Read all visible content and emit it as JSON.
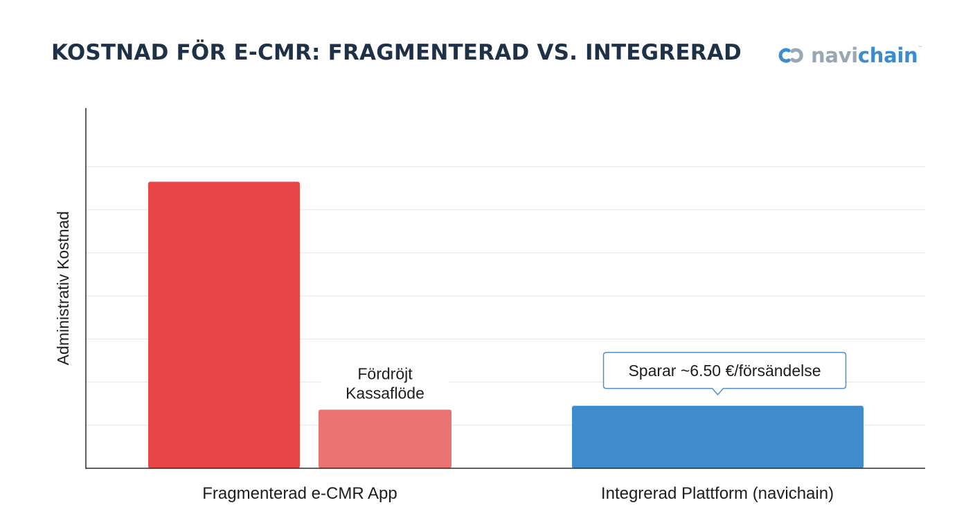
{
  "chart_data": {
    "type": "bar",
    "title": "KOSTNAD FÖR E-CMR: FRAGMENTERAD VS. INTEGRERAD",
    "ylabel": "Administrativ Kostnad",
    "xlabel": "",
    "ylim": [
      0,
      100
    ],
    "grid": true,
    "categories": [
      "Fragmenterad e-CMR App",
      "Integrerad Plattform (navichain)"
    ],
    "bars": [
      {
        "category": "Fragmenterad e-CMR App",
        "value": 88,
        "color": "#e84646"
      },
      {
        "category": "Fragmenterad e-CMR App",
        "value": 18,
        "color": "#ea7272",
        "annotation": [
          "Fördröjt",
          "Kassaflöde"
        ]
      },
      {
        "category": "Integrerad Plattform (navichain)",
        "value": 19.2,
        "color": "#3f8ccd",
        "callout": "Sparar ~6.50 €/försändelse"
      }
    ]
  },
  "logo": {
    "part1": "navi",
    "part2": "chain",
    "tm": "™"
  },
  "colors": {
    "title": "#1f3147",
    "axis": "#2a2a2a",
    "grid": "#e3e3e3"
  }
}
